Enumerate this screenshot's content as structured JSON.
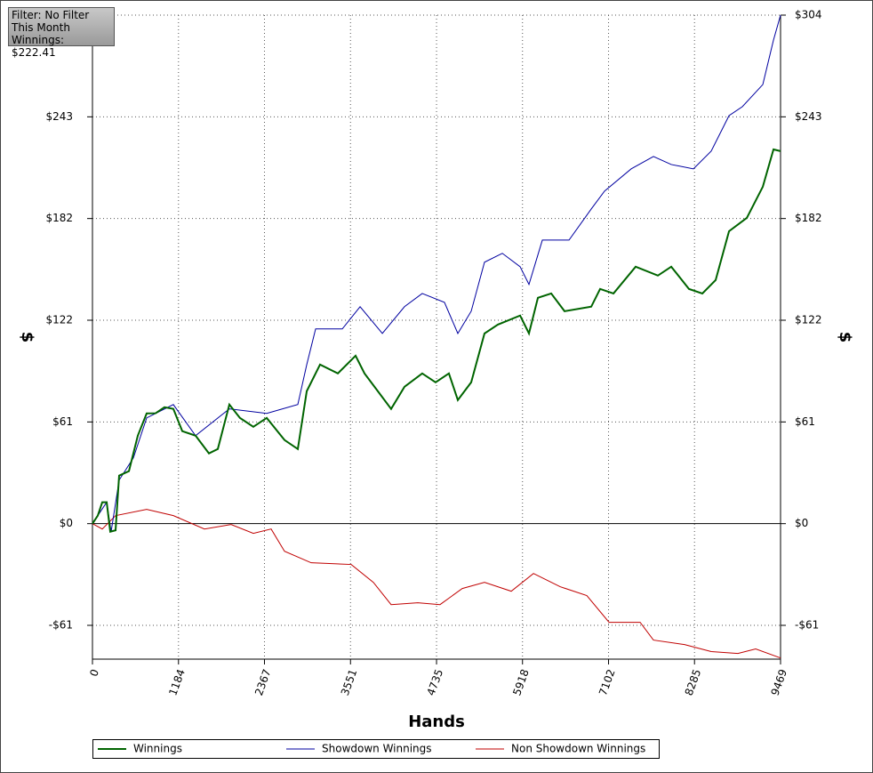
{
  "chart_data": {
    "type": "line",
    "filter": [
      "Filter: No Filter",
      "This Month",
      "Winnings: $222.41"
    ],
    "xlabel": "Hands",
    "ylabel": "$",
    "y2label": "$",
    "xlim": [
      0,
      9469
    ],
    "ylim": [
      -81,
      304
    ],
    "grid": true,
    "legend": "bottom",
    "xticks": [
      0,
      1184,
      2367,
      3551,
      4735,
      5918,
      7102,
      8285,
      9469
    ],
    "yticks": [
      {
        "value": -60.8,
        "label": "-$61"
      },
      {
        "value": 0,
        "label": "$0"
      },
      {
        "value": 60.8,
        "label": "$61"
      },
      {
        "value": 121.6,
        "label": "$122"
      },
      {
        "value": 182.4,
        "label": "$182"
      },
      {
        "value": 243.2,
        "label": "$243"
      },
      {
        "value": 304,
        "label": "$304"
      }
    ],
    "series": [
      {
        "name": "Winnings",
        "color": "#006400",
        "width": 2,
        "x": [
          0,
          73,
          135,
          196,
          245,
          318,
          367,
          502,
          624,
          746,
          869,
          991,
          1113,
          1236,
          1419,
          1603,
          1725,
          1884,
          2030,
          2214,
          2398,
          2643,
          2826,
          2949,
          3132,
          3377,
          3621,
          3744,
          3927,
          4110,
          4294,
          4538,
          4722,
          4905,
          5028,
          5212,
          5395,
          5579,
          5885,
          6007,
          6130,
          6313,
          6497,
          6864,
          6986,
          7170,
          7475,
          7781,
          7965,
          8209,
          8393,
          8576,
          8760,
          9005,
          9225,
          9372,
          9469
        ],
        "values": [
          0,
          4.8,
          12.8,
          12.8,
          -4.8,
          -4,
          28.7,
          31.4,
          52.6,
          65.9,
          66,
          69.6,
          68.6,
          55.3,
          52.6,
          42,
          44.6,
          71.2,
          63.2,
          57.9,
          63.2,
          50,
          44.6,
          79.2,
          95.1,
          89.8,
          100.4,
          89.8,
          79.2,
          68.6,
          81.8,
          89.8,
          84.5,
          89.8,
          73.9,
          84.5,
          113.7,
          119,
          124.4,
          113.7,
          135,
          137.6,
          127,
          129.7,
          140.3,
          137.6,
          153.6,
          148.3,
          153.6,
          140.3,
          137.6,
          145.6,
          174.8,
          182.8,
          201.4,
          223.7,
          222.7
        ]
      },
      {
        "name": "Showdown Winnings",
        "color": "#0000a0",
        "width": 1,
        "x": [
          0,
          196,
          257,
          367,
          563,
          746,
          1113,
          1419,
          1884,
          2398,
          2826,
          2949,
          3071,
          3438,
          3683,
          3989,
          4294,
          4538,
          4844,
          5028,
          5212,
          5395,
          5640,
          5885,
          6007,
          6191,
          6558,
          6864,
          7047,
          7414,
          7720,
          7965,
          8270,
          8515,
          8760,
          8944,
          9225,
          9372,
          9469
        ],
        "values": [
          0,
          12.8,
          -4.8,
          26,
          39.3,
          63.2,
          71.2,
          52.6,
          68.6,
          65.9,
          71.2,
          95.1,
          116.4,
          116.4,
          129.7,
          113.7,
          129.7,
          137.6,
          132.3,
          113.7,
          127,
          156.3,
          161.6,
          153.6,
          143,
          169.5,
          169.5,
          188.1,
          198.8,
          212.1,
          219.5,
          214.7,
          212.1,
          222.7,
          243.9,
          249.3,
          262.5,
          289.1,
          304
        ]
      },
      {
        "name": "Non Showdown Winnings",
        "color": "#c00000",
        "width": 1,
        "x": [
          0,
          135,
          318,
          746,
          1113,
          1541,
          1908,
          2214,
          2459,
          2643,
          3010,
          3560,
          3866,
          4110,
          4477,
          4783,
          5089,
          5395,
          5763,
          6069,
          6436,
          6803,
          7109,
          7537,
          7720,
          8148,
          8515,
          8882,
          9127,
          9469
        ],
        "values": [
          0,
          -3.2,
          4.8,
          8.5,
          4.8,
          -3.2,
          -0.5,
          -5.8,
          -3.2,
          -16.5,
          -23.4,
          -24.4,
          -35.1,
          -48.4,
          -47.3,
          -48.4,
          -38.8,
          -35.1,
          -40.4,
          -29.8,
          -37.7,
          -43,
          -59,
          -59,
          -69.6,
          -72.3,
          -76.5,
          -77.6,
          -74.9,
          -80.3
        ]
      }
    ]
  }
}
